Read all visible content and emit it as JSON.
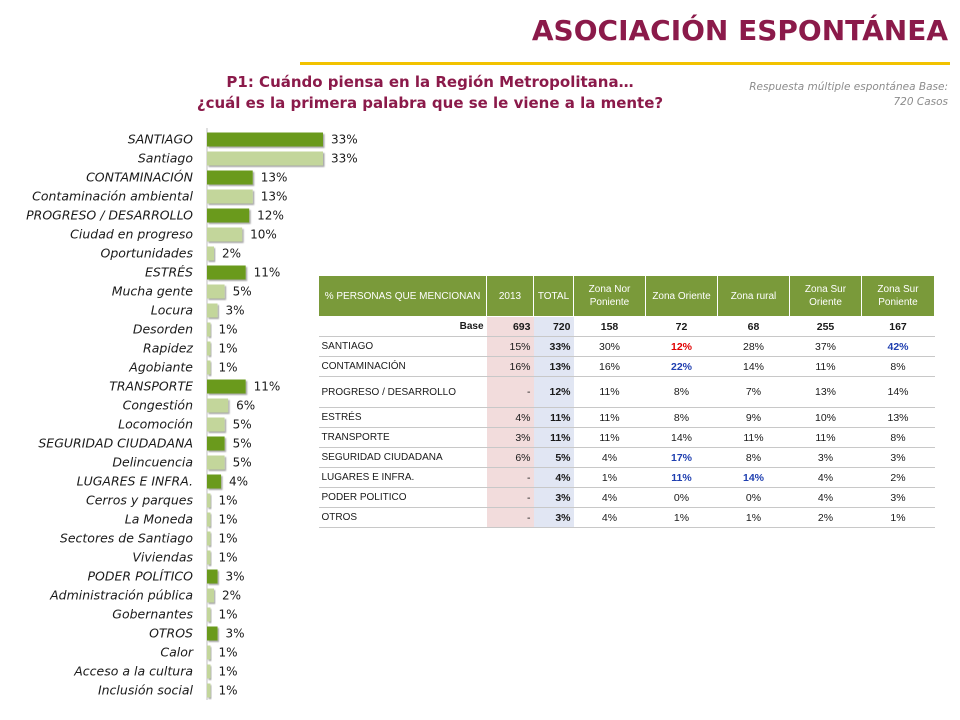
{
  "header": {
    "title": "ASOCIACIÓN ESPONTÁNEA",
    "question_line1": "P1: Cuándo piensa en la Región Metropolitana…",
    "question_line2": "¿cuál es la primera palabra que se le viene a la mente?",
    "note_line1": "Respuesta múltiple espontánea Base:",
    "note_line2": "720 Casos"
  },
  "colors": {
    "title": "#8b1a4a",
    "rule": "#f2c200",
    "bar_main": "#6a9a1a",
    "bar_sub": "#c3d69b",
    "table_header": "#7a9a3a"
  },
  "chart_data": {
    "type": "bar",
    "orientation": "horizontal",
    "xlim": [
      0,
      33
    ],
    "categories": [
      "SANTIAGO",
      "Santiago",
      "CONTAMINACIÓN",
      "Contaminación ambiental",
      "PROGRESO / DESARROLLO",
      "Ciudad en progreso",
      "Oportunidades",
      "ESTRÉS",
      "Mucha gente",
      "Locura",
      "Desorden",
      "Rapidez",
      "Agobiante",
      "TRANSPORTE",
      "Congestión",
      "Locomoción",
      "SEGURIDAD CIUDADANA",
      "Delincuencia",
      "LUGARES E INFRA.",
      "Cerros y parques",
      "La Moneda",
      "Sectores de Santiago",
      "Viviendas",
      "PODER POLÍTICO",
      "Administración pública",
      "Gobernantes",
      "OTROS",
      "Calor",
      "Acceso a la cultura",
      "Inclusión social"
    ],
    "values": [
      33,
      33,
      13,
      13,
      12,
      10,
      2,
      11,
      5,
      3,
      1,
      1,
      1,
      11,
      6,
      5,
      5,
      5,
      4,
      1,
      1,
      1,
      1,
      3,
      2,
      1,
      3,
      1,
      1,
      1
    ],
    "value_labels": [
      "33%",
      "33%",
      "13%",
      "13%",
      "12%",
      "10%",
      "2%",
      "11%",
      "5%",
      "3%",
      "1%",
      "1%",
      "1%",
      "11%",
      "6%",
      "5%",
      "5%",
      "5%",
      "4%",
      "1%",
      "1%",
      "1%",
      "1%",
      "3%",
      "2%",
      "1%",
      "3%",
      "1%",
      "1%",
      "1%"
    ],
    "is_group": [
      true,
      false,
      true,
      false,
      true,
      false,
      false,
      true,
      false,
      false,
      false,
      false,
      false,
      true,
      false,
      false,
      true,
      false,
      true,
      false,
      false,
      false,
      false,
      true,
      false,
      false,
      true,
      false,
      false,
      false
    ]
  },
  "table": {
    "headers": [
      "% PERSONAS QUE MENCIONAN",
      "2013",
      "TOTAL",
      "Zona Nor Poniente",
      "Zona Oriente",
      "Zona rural",
      "Zona Sur Oriente",
      "Zona Sur Poniente"
    ],
    "rows": [
      {
        "cells": [
          "Base",
          "693",
          "720",
          "158",
          "72",
          "68",
          "255",
          "167"
        ],
        "hi": [
          "",
          "",
          "",
          "",
          "",
          "",
          "",
          ""
        ]
      },
      {
        "cells": [
          "SANTIAGO",
          "15%",
          "33%",
          "30%",
          "12%",
          "28%",
          "37%",
          "42%"
        ],
        "hi": [
          "",
          "",
          "",
          "",
          "red",
          "",
          "",
          "blue"
        ]
      },
      {
        "cells": [
          "CONTAMINACIÓN",
          "16%",
          "13%",
          "16%",
          "22%",
          "14%",
          "11%",
          "8%"
        ],
        "hi": [
          "",
          "",
          "",
          "",
          "blue",
          "",
          "",
          ""
        ]
      },
      {
        "cells": [
          "PROGRESO / DESARROLLO",
          "-",
          "12%",
          "11%",
          "8%",
          "7%",
          "13%",
          "14%"
        ],
        "hi": [
          "",
          "",
          "",
          "",
          "",
          "",
          "",
          ""
        ]
      },
      {
        "cells": [
          "ESTRÉS",
          "4%",
          "11%",
          "11%",
          "8%",
          "9%",
          "10%",
          "13%"
        ],
        "hi": [
          "",
          "",
          "",
          "",
          "",
          "",
          "",
          ""
        ]
      },
      {
        "cells": [
          "TRANSPORTE",
          "3%",
          "11%",
          "11%",
          "14%",
          "11%",
          "11%",
          "8%"
        ],
        "hi": [
          "",
          "",
          "",
          "",
          "",
          "",
          "",
          ""
        ]
      },
      {
        "cells": [
          "SEGURIDAD CIUDADANA",
          "6%",
          "5%",
          "4%",
          "17%",
          "8%",
          "3%",
          "3%"
        ],
        "hi": [
          "",
          "",
          "",
          "",
          "blue",
          "",
          "",
          ""
        ]
      },
      {
        "cells": [
          "LUGARES E INFRA.",
          "-",
          "4%",
          "1%",
          "11%",
          "14%",
          "4%",
          "2%"
        ],
        "hi": [
          "",
          "",
          "",
          "",
          "blue",
          "blue",
          "",
          ""
        ]
      },
      {
        "cells": [
          "PODER POLITICO",
          "-",
          "3%",
          "4%",
          "0%",
          "0%",
          "4%",
          "3%"
        ],
        "hi": [
          "",
          "",
          "",
          "",
          "",
          "",
          "",
          ""
        ]
      },
      {
        "cells": [
          "OTROS",
          "-",
          "3%",
          "4%",
          "1%",
          "1%",
          "2%",
          "1%"
        ],
        "hi": [
          "",
          "",
          "",
          "",
          "",
          "",
          "",
          ""
        ]
      }
    ]
  }
}
